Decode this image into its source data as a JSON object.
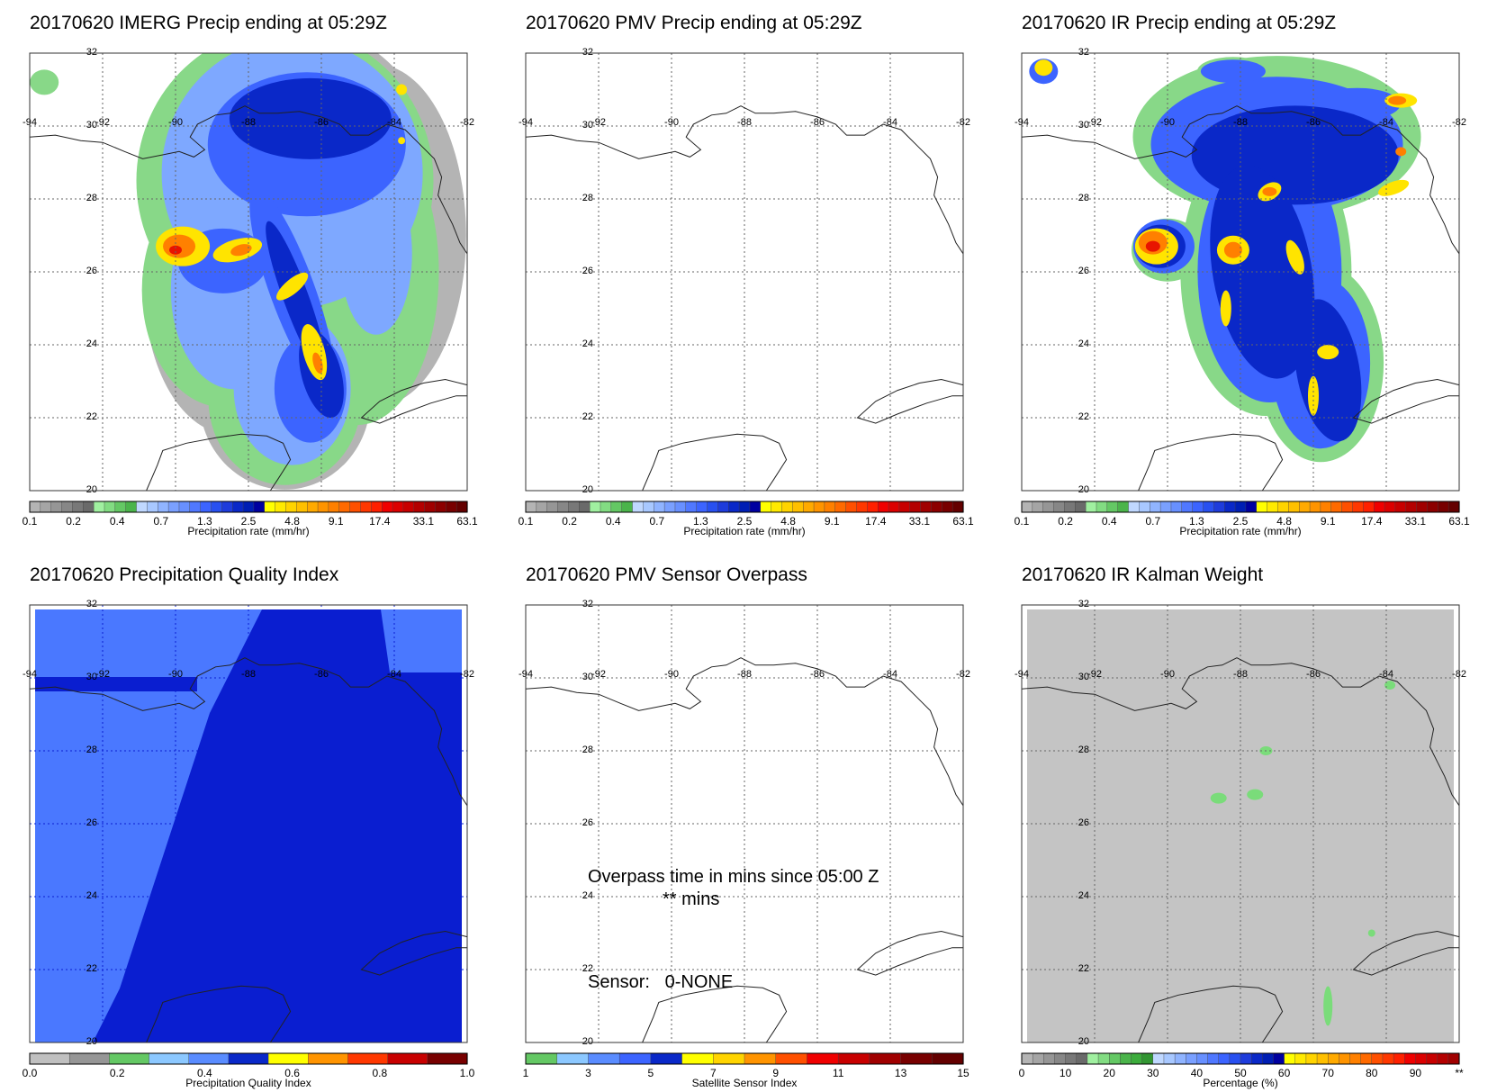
{
  "panels": [
    {
      "id": "imerg",
      "title": "20170620 IMERG Precip ending at 05:29Z",
      "field": "imerg",
      "bar": "precip",
      "label": "Precipitation rate (mm/hr)"
    },
    {
      "id": "pmv",
      "title": "20170620 PMV Precip ending at 05:29Z",
      "field": "none",
      "bar": "precip",
      "label": "Precipitation rate (mm/hr)"
    },
    {
      "id": "ir",
      "title": "20170620 IR Precip ending at 05:29Z",
      "field": "ir",
      "bar": "precip",
      "label": "Precipitation rate (mm/hr)"
    },
    {
      "id": "pqi",
      "title": "20170620 Precipitation Quality Index",
      "field": "pqi",
      "bar": "pqi",
      "label": "Precipitation Quality Index"
    },
    {
      "id": "overpass",
      "title": "20170620 PMV Sensor Overpass",
      "field": "none",
      "bar": "sensor",
      "label": "Satellite Sensor Index",
      "overpass_text": "Overpass time in mins since 05:00 Z",
      "overpass_value": "** mins",
      "sensor_text": "Sensor:   0-NONE"
    },
    {
      "id": "kalman",
      "title": "20170620 IR Kalman Weight",
      "field": "kalman",
      "bar": "percent",
      "label": "Percentage (%)"
    }
  ],
  "map": {
    "lon_labels": [
      "-94",
      "-92",
      "-90",
      "-88",
      "-86",
      "-84",
      "-82"
    ],
    "lat_labels": [
      "32",
      "30",
      "28",
      "26",
      "24",
      "22",
      "20"
    ],
    "lon_range": [
      -94,
      -82
    ],
    "lat_range": [
      20,
      32
    ]
  },
  "colorbars": {
    "precip": {
      "colors": [
        "#b4b4b4",
        "#a5a5a5",
        "#969696",
        "#878787",
        "#787878",
        "#6a6a6a",
        "#a0f0a0",
        "#82dc82",
        "#64c864",
        "#4bb44b",
        "#c0d8ff",
        "#a8c8ff",
        "#90b4ff",
        "#7aa0ff",
        "#6890ff",
        "#5078ff",
        "#3c64ff",
        "#2850f0",
        "#1e3cdc",
        "#0a28c8",
        "#001eb4",
        "#0000a0",
        "#ffff00",
        "#ffea00",
        "#ffd400",
        "#ffc000",
        "#ffaa00",
        "#ff9400",
        "#ff8000",
        "#ff6a00",
        "#ff5000",
        "#ff3800",
        "#ff2000",
        "#f00000",
        "#dc0000",
        "#c80000",
        "#b40000",
        "#a00000",
        "#8c0000",
        "#780000",
        "#640000"
      ],
      "ticks": [
        "0.1",
        "0.2",
        "0.4",
        "0.7",
        "1.3",
        "2.5",
        "4.8",
        "9.1",
        "17.4",
        "33.1",
        "63.1"
      ]
    },
    "pqi": {
      "colors": [
        "#c0c0c0",
        "#969696",
        "#64c864",
        "#8cc8ff",
        "#5a8cff",
        "#0a28c8",
        "#ffff00",
        "#ff9400",
        "#ff3800",
        "#c80000",
        "#780000"
      ],
      "ticks": [
        "0.0",
        "0.2",
        "0.4",
        "0.6",
        "0.8",
        "1.0"
      ]
    },
    "sensor": {
      "colors": [
        "#64c864",
        "#8cc8ff",
        "#5a8cff",
        "#3c64ff",
        "#0a28c8",
        "#ffff00",
        "#ffd400",
        "#ff9400",
        "#ff5000",
        "#f00000",
        "#c80000",
        "#a00000",
        "#780000",
        "#640000"
      ],
      "ticks": [
        "1",
        "3",
        "5",
        "7",
        "9",
        "11",
        "13",
        "15"
      ]
    },
    "percent": {
      "colors": [
        "#b4b4b4",
        "#a5a5a5",
        "#969696",
        "#878787",
        "#787878",
        "#6a6a6a",
        "#a0f0a0",
        "#82dc82",
        "#64c864",
        "#4bb44b",
        "#3cac3c",
        "#329632",
        "#c0d8ff",
        "#a8c8ff",
        "#90b4ff",
        "#7aa0ff",
        "#6890ff",
        "#5078ff",
        "#3c64ff",
        "#2850f0",
        "#1e3cdc",
        "#0a28c8",
        "#001eb4",
        "#0000a0",
        "#ffff00",
        "#ffea00",
        "#ffd400",
        "#ffc000",
        "#ffaa00",
        "#ff9400",
        "#ff8000",
        "#ff6a00",
        "#ff5000",
        "#ff3800",
        "#ff2000",
        "#f00000",
        "#dc0000",
        "#c80000",
        "#b40000",
        "#a00000"
      ],
      "ticks": [
        "0",
        "10",
        "20",
        "30",
        "40",
        "50",
        "60",
        "70",
        "80",
        "90",
        "**"
      ]
    }
  }
}
